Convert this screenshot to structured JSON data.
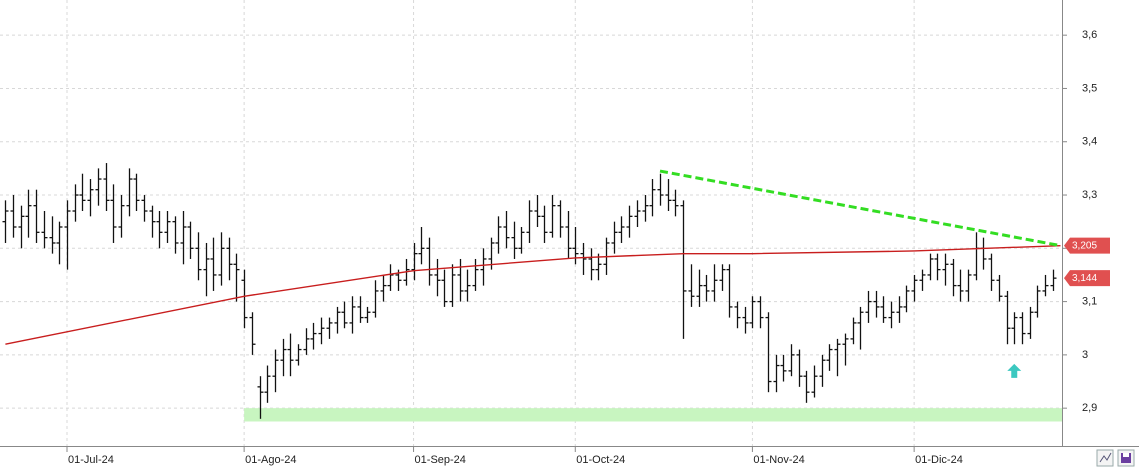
{
  "chart_data": {
    "type": "ohlc",
    "ylim": [
      2.829,
      3.666
    ],
    "yticks": [
      {
        "value": 2.9,
        "label": "2,9"
      },
      {
        "value": 3,
        "label": "3"
      },
      {
        "value": 3.1,
        "label": "3,1"
      },
      {
        "value": 3.2,
        "label": "3,2"
      },
      {
        "value": 3.3,
        "label": "3,3"
      },
      {
        "value": 3.4,
        "label": "3,4"
      },
      {
        "value": 3.5,
        "label": "3,5"
      },
      {
        "value": 3.6,
        "label": "3,6"
      }
    ],
    "xlim": [
      -0.7,
      137.2
    ],
    "xticks": [
      {
        "value": 8,
        "label": "01-Jul-24"
      },
      {
        "value": 31,
        "label": "01-Ago-24"
      },
      {
        "value": 53,
        "label": "01-Sep-24"
      },
      {
        "value": 74,
        "label": "01-Oct-24"
      },
      {
        "value": 97,
        "label": "01-Nov-24"
      },
      {
        "value": 118,
        "label": "01-Dic-24"
      }
    ],
    "grid": true,
    "bar_color": "#111111",
    "ohlc": [
      [
        3.25,
        3.29,
        3.21,
        3.27
      ],
      [
        3.27,
        3.3,
        3.22,
        3.24
      ],
      [
        3.24,
        3.28,
        3.2,
        3.26
      ],
      [
        3.26,
        3.31,
        3.22,
        3.28
      ],
      [
        3.28,
        3.31,
        3.21,
        3.23
      ],
      [
        3.23,
        3.27,
        3.2,
        3.22
      ],
      [
        3.22,
        3.26,
        3.19,
        3.21
      ],
      [
        3.21,
        3.25,
        3.17,
        3.24
      ],
      [
        3.24,
        3.29,
        3.16,
        3.27
      ],
      [
        3.27,
        3.32,
        3.25,
        3.3
      ],
      [
        3.3,
        3.34,
        3.27,
        3.29
      ],
      [
        3.29,
        3.33,
        3.26,
        3.31
      ],
      [
        3.31,
        3.35,
        3.28,
        3.33
      ],
      [
        3.33,
        3.36,
        3.27,
        3.29
      ],
      [
        3.29,
        3.32,
        3.21,
        3.24
      ],
      [
        3.24,
        3.3,
        3.22,
        3.28
      ],
      [
        3.28,
        3.35,
        3.26,
        3.33
      ],
      [
        3.33,
        3.34,
        3.27,
        3.29
      ],
      [
        3.29,
        3.3,
        3.25,
        3.27
      ],
      [
        3.27,
        3.28,
        3.22,
        3.25
      ],
      [
        3.25,
        3.27,
        3.2,
        3.23
      ],
      [
        3.23,
        3.27,
        3.21,
        3.25
      ],
      [
        3.25,
        3.26,
        3.19,
        3.21
      ],
      [
        3.21,
        3.27,
        3.17,
        3.24
      ],
      [
        3.24,
        3.25,
        3.18,
        3.2
      ],
      [
        3.2,
        3.23,
        3.14,
        3.16
      ],
      [
        3.16,
        3.21,
        3.11,
        3.18
      ],
      [
        3.18,
        3.22,
        3.12,
        3.15
      ],
      [
        3.15,
        3.23,
        3.13,
        3.2
      ],
      [
        3.2,
        3.22,
        3.14,
        3.17
      ],
      [
        3.17,
        3.19,
        3.1,
        3.16
      ],
      [
        3.14,
        3.16,
        3.05,
        3.07
      ],
      [
        3.07,
        3.08,
        3.0,
        3.02
      ],
      [
        2.94,
        2.96,
        2.88,
        2.93
      ],
      [
        2.93,
        2.98,
        2.91,
        2.96
      ],
      [
        2.96,
        3.01,
        2.93,
        2.99
      ],
      [
        2.99,
        3.03,
        2.96,
        3.01
      ],
      [
        3.01,
        3.04,
        2.96,
        2.99
      ],
      [
        2.99,
        3.02,
        2.98,
        3.01
      ],
      [
        3.01,
        3.05,
        3.0,
        3.03
      ],
      [
        3.03,
        3.06,
        3.01,
        3.04
      ],
      [
        3.04,
        3.07,
        3.02,
        3.05
      ],
      [
        3.05,
        3.07,
        3.03,
        3.06
      ],
      [
        3.06,
        3.09,
        3.04,
        3.08
      ],
      [
        3.08,
        3.1,
        3.05,
        3.06
      ],
      [
        3.06,
        3.11,
        3.04,
        3.09
      ],
      [
        3.09,
        3.11,
        3.06,
        3.07
      ],
      [
        3.07,
        3.09,
        3.06,
        3.08
      ],
      [
        3.08,
        3.14,
        3.07,
        3.12
      ],
      [
        3.12,
        3.15,
        3.1,
        3.13
      ],
      [
        3.13,
        3.17,
        3.12,
        3.15
      ],
      [
        3.15,
        3.16,
        3.12,
        3.14
      ],
      [
        3.14,
        3.18,
        3.13,
        3.16
      ],
      [
        3.16,
        3.21,
        3.14,
        3.19
      ],
      [
        3.19,
        3.24,
        3.17,
        3.2
      ],
      [
        3.2,
        3.22,
        3.13,
        3.15
      ],
      [
        3.15,
        3.18,
        3.11,
        3.14
      ],
      [
        3.14,
        3.16,
        3.09,
        3.1
      ],
      [
        3.1,
        3.17,
        3.09,
        3.15
      ],
      [
        3.15,
        3.18,
        3.1,
        3.12
      ],
      [
        3.12,
        3.16,
        3.1,
        3.13
      ],
      [
        3.13,
        3.18,
        3.12,
        3.16
      ],
      [
        3.16,
        3.2,
        3.13,
        3.18
      ],
      [
        3.18,
        3.22,
        3.16,
        3.21
      ],
      [
        3.21,
        3.26,
        3.19,
        3.24
      ],
      [
        3.24,
        3.27,
        3.2,
        3.22
      ],
      [
        3.22,
        3.25,
        3.18,
        3.2
      ],
      [
        3.2,
        3.24,
        3.19,
        3.23
      ],
      [
        3.23,
        3.29,
        3.21,
        3.27
      ],
      [
        3.27,
        3.3,
        3.24,
        3.26
      ],
      [
        3.26,
        3.28,
        3.21,
        3.23
      ],
      [
        3.23,
        3.3,
        3.22,
        3.28
      ],
      [
        3.28,
        3.29,
        3.22,
        3.24
      ],
      [
        3.24,
        3.27,
        3.18,
        3.2
      ],
      [
        3.2,
        3.24,
        3.17,
        3.19
      ],
      [
        3.19,
        3.21,
        3.15,
        3.18
      ],
      [
        3.18,
        3.2,
        3.14,
        3.16
      ],
      [
        3.16,
        3.19,
        3.14,
        3.17
      ],
      [
        3.17,
        3.22,
        3.15,
        3.21
      ],
      [
        3.21,
        3.25,
        3.19,
        3.23
      ],
      [
        3.23,
        3.26,
        3.21,
        3.24
      ],
      [
        3.24,
        3.28,
        3.22,
        3.26
      ],
      [
        3.26,
        3.29,
        3.24,
        3.27
      ],
      [
        3.27,
        3.3,
        3.25,
        3.28
      ],
      [
        3.28,
        3.33,
        3.26,
        3.31
      ],
      [
        3.31,
        3.34,
        3.28,
        3.3
      ],
      [
        3.3,
        3.33,
        3.27,
        3.29
      ],
      [
        3.29,
        3.31,
        3.26,
        3.28
      ],
      [
        3.28,
        3.29,
        3.03,
        3.12
      ],
      [
        3.12,
        3.17,
        3.09,
        3.11
      ],
      [
        3.11,
        3.16,
        3.09,
        3.13
      ],
      [
        3.13,
        3.15,
        3.1,
        3.12
      ],
      [
        3.12,
        3.17,
        3.1,
        3.14
      ],
      [
        3.14,
        3.17,
        3.12,
        3.16
      ],
      [
        3.16,
        3.17,
        3.07,
        3.09
      ],
      [
        3.09,
        3.1,
        3.05,
        3.07
      ],
      [
        3.07,
        3.09,
        3.04,
        3.06
      ],
      [
        3.06,
        3.11,
        3.05,
        3.1
      ],
      [
        3.1,
        3.11,
        3.05,
        3.07
      ],
      [
        3.07,
        3.08,
        2.93,
        2.95
      ],
      [
        2.95,
        3.0,
        2.93,
        2.98
      ],
      [
        2.98,
        3.0,
        2.95,
        2.97
      ],
      [
        2.97,
        3.02,
        2.96,
        3.0
      ],
      [
        3.0,
        3.01,
        2.94,
        2.96
      ],
      [
        2.96,
        2.97,
        2.91,
        2.93
      ],
      [
        2.93,
        2.98,
        2.92,
        2.96
      ],
      [
        2.96,
        3.0,
        2.94,
        2.99
      ],
      [
        2.99,
        3.02,
        2.97,
        3.01
      ],
      [
        3.01,
        3.03,
        2.96,
        3.02
      ],
      [
        3.02,
        3.04,
        2.98,
        3.03
      ],
      [
        3.03,
        3.07,
        3.02,
        3.06
      ],
      [
        3.06,
        3.09,
        3.01,
        3.08
      ],
      [
        3.08,
        3.12,
        3.06,
        3.1
      ],
      [
        3.1,
        3.12,
        3.07,
        3.09
      ],
      [
        3.09,
        3.11,
        3.06,
        3.07
      ],
      [
        3.07,
        3.1,
        3.05,
        3.08
      ],
      [
        3.08,
        3.11,
        3.06,
        3.09
      ],
      [
        3.09,
        3.13,
        3.08,
        3.12
      ],
      [
        3.12,
        3.15,
        3.1,
        3.14
      ],
      [
        3.14,
        3.16,
        3.12,
        3.15
      ],
      [
        3.15,
        3.19,
        3.14,
        3.18
      ],
      [
        3.18,
        3.19,
        3.14,
        3.16
      ],
      [
        3.16,
        3.19,
        3.13,
        3.17
      ],
      [
        3.17,
        3.18,
        3.11,
        3.13
      ],
      [
        3.13,
        3.16,
        3.1,
        3.12
      ],
      [
        3.12,
        3.16,
        3.1,
        3.15
      ],
      [
        3.15,
        3.23,
        3.14,
        3.2
      ],
      [
        3.2,
        3.22,
        3.16,
        3.18
      ],
      [
        3.18,
        3.19,
        3.12,
        3.14
      ],
      [
        3.14,
        3.15,
        3.1,
        3.11
      ],
      [
        3.11,
        3.12,
        3.02,
        3.05
      ],
      [
        3.05,
        3.08,
        3.02,
        3.07
      ],
      [
        3.07,
        3.08,
        3.02,
        3.04
      ],
      [
        3.04,
        3.09,
        3.03,
        3.08
      ],
      [
        3.08,
        3.13,
        3.07,
        3.12
      ],
      [
        3.12,
        3.15,
        3.11,
        3.13
      ],
      [
        3.13,
        3.16,
        3.12,
        3.144
      ]
    ],
    "moving_average": {
      "color": "#c81e1e",
      "x": [
        0,
        31,
        53,
        74,
        88,
        97,
        118,
        137
      ],
      "values": [
        3.02,
        3.11,
        3.158,
        3.182,
        3.19,
        3.19,
        3.195,
        3.205
      ]
    },
    "trendline": {
      "color": "#33dd22",
      "x": [
        85,
        137
      ],
      "values": [
        3.345,
        3.205
      ]
    },
    "support_zone": {
      "color": "#c8f5c0",
      "x": 31,
      "range": [
        2.875,
        2.9
      ]
    },
    "arrow": {
      "color": "#3cc8c0",
      "x": 131,
      "value": 2.97
    },
    "price_labels": [
      {
        "value": 3.205,
        "label": "3,205",
        "color": "#e05050"
      },
      {
        "value": 3.144,
        "label": "3,144",
        "color": "#e05050"
      }
    ]
  }
}
